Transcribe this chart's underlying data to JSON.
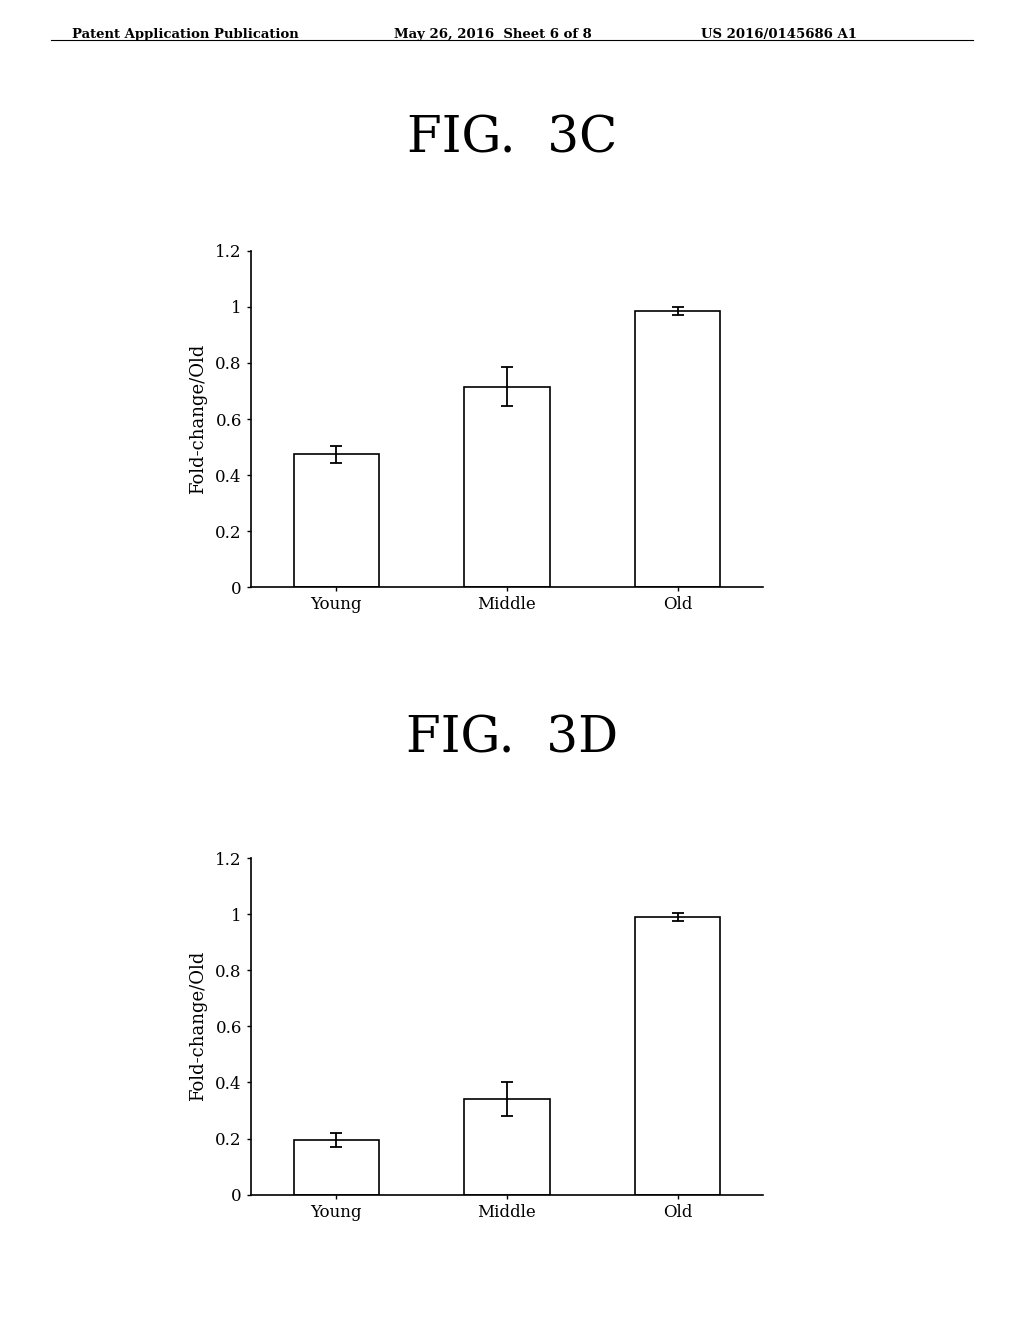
{
  "header_left": "Patent Application Publication",
  "header_mid": "May 26, 2016  Sheet 6 of 8",
  "header_right": "US 2016/0145686 A1",
  "fig3c_title": "FIG.  3C",
  "fig3d_title": "FIG.  3D",
  "categories": [
    "Young",
    "Middle",
    "Old"
  ],
  "fig3c_values": [
    0.475,
    0.715,
    0.985
  ],
  "fig3c_errors": [
    0.03,
    0.07,
    0.015
  ],
  "fig3d_values": [
    0.195,
    0.34,
    0.99
  ],
  "fig3d_errors": [
    0.025,
    0.06,
    0.015
  ],
  "ylabel": "Fold-change/Old",
  "ylim": [
    0,
    1.2
  ],
  "yticks": [
    0,
    0.2,
    0.4,
    0.6,
    0.8,
    1.0,
    1.2
  ],
  "ytick_labels": [
    "0",
    "0.2",
    "0.4",
    "0.6",
    "0.8",
    "1",
    "1.2"
  ],
  "bar_color": "#ffffff",
  "bar_edgecolor": "#000000",
  "background_color": "#ffffff",
  "bar_width": 0.5,
  "fig_title_fontsize": 36,
  "header_fontsize": 9.5,
  "axis_label_fontsize": 13,
  "tick_fontsize": 12
}
